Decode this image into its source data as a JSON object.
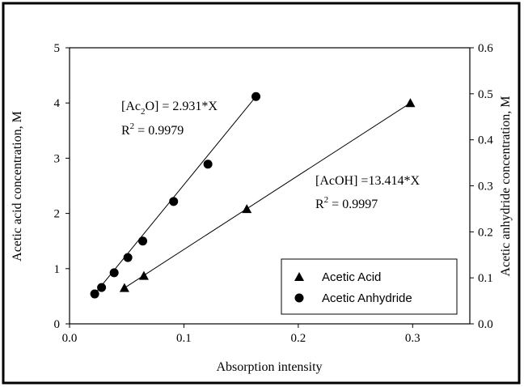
{
  "chart_data": {
    "type": "scatter",
    "xlabel": "Absorption intensity",
    "ylabel": "Acetic acid concentration, M",
    "y2label": "Acetic anhydride concentration, M",
    "xlim": [
      0,
      0.35
    ],
    "xticks": [
      {
        "value": 0,
        "label": "0.0"
      },
      0.1,
      0.2,
      0.3
    ],
    "ylim": [
      0,
      5
    ],
    "yticks": [
      0,
      1,
      2,
      3,
      4,
      5
    ],
    "y2lim": [
      0,
      0.6
    ],
    "y2ticks": [
      {
        "value": 0,
        "label": "0.0"
      },
      0.1,
      0.2,
      0.3,
      0.4,
      0.5,
      0.6
    ],
    "legend": "lower right",
    "series": [
      {
        "name": "Acetic Acid",
        "color": "#000000",
        "marker": "triangle",
        "axis": "y",
        "x": [
          0.048,
          0.065,
          0.155,
          0.298
        ],
        "values": [
          0.65,
          0.87,
          2.08,
          4.0
        ]
      },
      {
        "name": "Acetic Anhydride",
        "color": "#000000",
        "marker": "circle",
        "axis": "y2",
        "x": [
          0.022,
          0.028,
          0.039,
          0.051,
          0.064,
          0.091,
          0.121,
          0.163
        ],
        "values": [
          0.065,
          0.079,
          0.111,
          0.144,
          0.18,
          0.266,
          0.347,
          0.494
        ]
      }
    ],
    "annotations": [
      {
        "before": "[Ac",
        "sub": "2",
        "after": "O] = 2.931*X"
      },
      {
        "before": "R",
        "sup": "2",
        "after": " = 0.9979"
      },
      {
        "before": "[AcOH] =13.414*X"
      },
      {
        "before": "R",
        "sup": "2",
        "after": " = 0.9997"
      }
    ]
  }
}
